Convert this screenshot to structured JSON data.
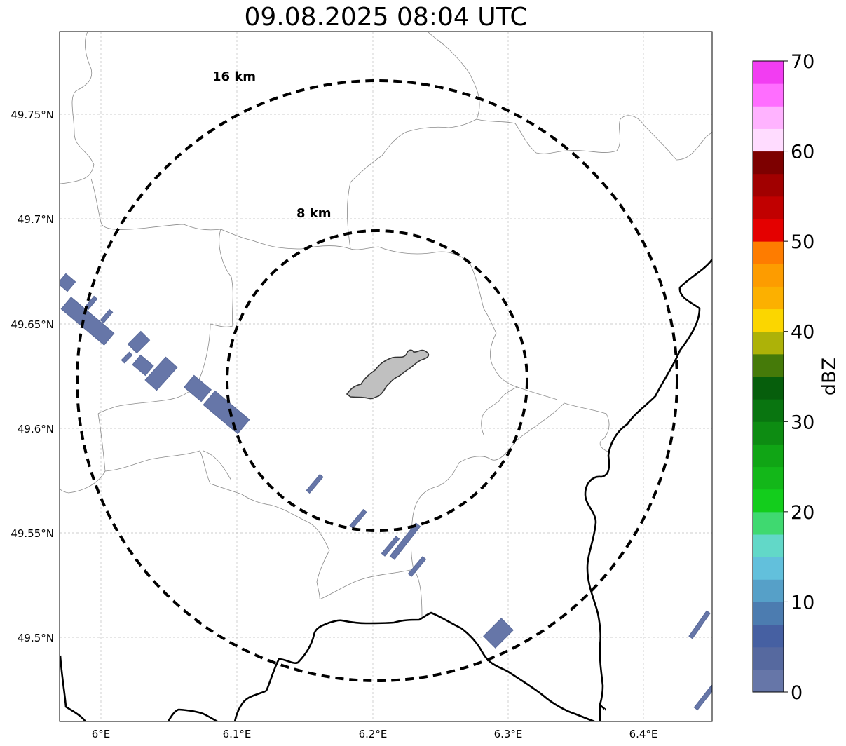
{
  "title": "09.08.2025 08:04 UTC",
  "map": {
    "lon_range": [
      5.97,
      6.45
    ],
    "lat_range": [
      49.46,
      49.79
    ],
    "center": {
      "lon": 6.2,
      "lat": 49.623
    },
    "gridlines": true,
    "x_ticks": [
      {
        "value": 6.0,
        "label": "6°E"
      },
      {
        "value": 6.1,
        "label": "6.1°E"
      },
      {
        "value": 6.2,
        "label": "6.2°E"
      },
      {
        "value": 6.3,
        "label": "6.3°E"
      },
      {
        "value": 6.4,
        "label": "6.4°E"
      }
    ],
    "y_ticks": [
      {
        "value": 49.75,
        "label": "49.75°N"
      },
      {
        "value": 49.7,
        "label": "49.7°N"
      },
      {
        "value": 49.65,
        "label": "49.65°N"
      },
      {
        "value": 49.6,
        "label": "49.6°N"
      },
      {
        "value": 49.55,
        "label": "49.55°N"
      },
      {
        "value": 49.5,
        "label": "49.5°N"
      }
    ],
    "range_rings": [
      {
        "radius_km": 8,
        "label": "8 km"
      },
      {
        "radius_km": 16,
        "label": "16 km"
      }
    ]
  },
  "colorbar": {
    "label": "dBZ",
    "min": 0,
    "max": 70,
    "step": 2.5,
    "ticks": [
      {
        "value": 0,
        "label": "0"
      },
      {
        "value": 10,
        "label": "10"
      },
      {
        "value": 20,
        "label": "20"
      },
      {
        "value": 30,
        "label": "30"
      },
      {
        "value": 40,
        "label": "40"
      },
      {
        "value": 50,
        "label": "50"
      },
      {
        "value": 60,
        "label": "60"
      },
      {
        "value": 70,
        "label": "70"
      }
    ],
    "colors": [
      "#6676a8",
      "#56699f",
      "#4660a2",
      "#4c7cb0",
      "#56a0c8",
      "#62c0dc",
      "#62d8c8",
      "#3fd970",
      "#13cd1c",
      "#13b719",
      "#10a515",
      "#0d8c12",
      "#097510",
      "#065e0c",
      "#457a09",
      "#adb208",
      "#fbd600",
      "#fcb000",
      "#fd9c00",
      "#fe7c00",
      "#e40000",
      "#c10000",
      "#a10000",
      "#7d0000",
      "#ffdcff",
      "#ffb3ff",
      "#ff6eff",
      "#f23df2"
    ]
  },
  "colors": {
    "echo": "#6676a8",
    "city": "#c0c0c0",
    "border": "#000000"
  }
}
